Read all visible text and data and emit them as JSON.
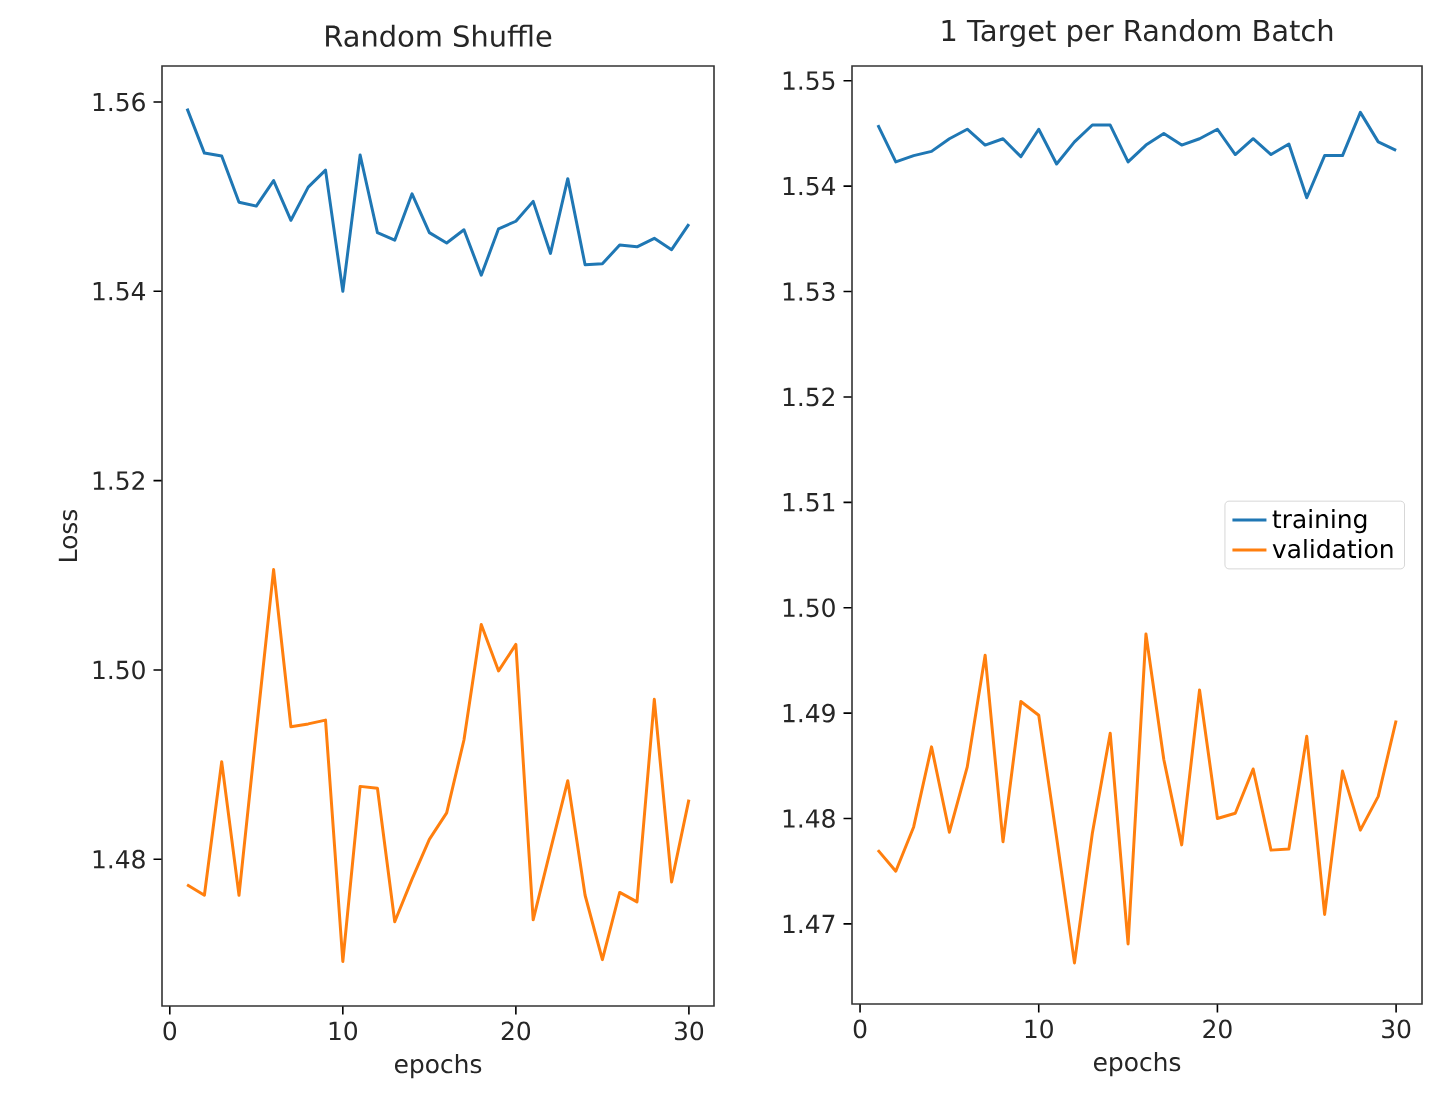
{
  "chart_data": [
    {
      "type": "line",
      "title": "Random Shuffle",
      "xlabel": "epochs",
      "ylabel": "Loss",
      "x": [
        1,
        2,
        3,
        4,
        5,
        6,
        7,
        8,
        9,
        10,
        11,
        12,
        13,
        14,
        15,
        16,
        17,
        18,
        19,
        20,
        21,
        22,
        23,
        24,
        25,
        26,
        27,
        28,
        29,
        30
      ],
      "series": [
        {
          "color": "#1f77b4",
          "values": [
            1.5593,
            1.5546,
            1.5543,
            1.5494,
            1.549,
            1.5517,
            1.5475,
            1.551,
            1.5528,
            1.54,
            1.5544,
            1.5462,
            1.5454,
            1.5503,
            1.5462,
            1.5451,
            1.5465,
            1.5417,
            1.5466,
            1.5474,
            1.5495,
            1.544,
            1.5519,
            1.5428,
            1.5429,
            1.5449,
            1.5447,
            1.5456,
            1.5444,
            1.5471
          ]
        },
        {
          "color": "#ff7f0e",
          "values": [
            1.4773,
            1.4762,
            1.4903,
            1.4762,
            1.4935,
            1.5106,
            1.494,
            1.4943,
            1.4947,
            1.4692,
            1.4877,
            1.4875,
            1.4734,
            1.4779,
            1.4821,
            1.4849,
            1.4926,
            1.5048,
            1.4999,
            1.5027,
            1.4736,
            1.481,
            1.4883,
            1.4762,
            1.4694,
            1.4765,
            1.4755,
            1.4969,
            1.4776,
            1.4863
          ]
        }
      ],
      "xlim": [
        -0.45,
        31.45
      ],
      "ylim": [
        1.4645,
        1.5638
      ],
      "xticks": [
        0,
        10,
        20,
        30
      ],
      "yticks": [
        1.48,
        {
          "value": 1.5,
          "label": "1.50"
        },
        1.52,
        1.54,
        1.56
      ]
    },
    {
      "type": "line",
      "title": "1 Target per Random Batch",
      "xlabel": "epochs",
      "x": [
        1,
        2,
        3,
        4,
        5,
        6,
        7,
        8,
        9,
        10,
        11,
        12,
        13,
        14,
        15,
        16,
        17,
        18,
        19,
        20,
        21,
        22,
        23,
        24,
        25,
        26,
        27,
        28,
        29,
        30
      ],
      "series": [
        {
          "name": "training",
          "color": "#1f77b4",
          "values": [
            1.5458,
            1.5423,
            1.5429,
            1.5433,
            1.5445,
            1.5454,
            1.5439,
            1.5445,
            1.5428,
            1.5454,
            1.5421,
            1.5442,
            1.5458,
            1.5458,
            1.5423,
            1.5439,
            1.545,
            1.5439,
            1.5445,
            1.5454,
            1.543,
            1.5445,
            1.543,
            1.544,
            1.5389,
            1.5429,
            1.5429,
            1.547,
            1.5442,
            1.5434
          ]
        },
        {
          "name": "validation",
          "color": "#ff7f0e",
          "values": [
            1.477,
            1.475,
            1.4792,
            1.4868,
            1.4787,
            1.4849,
            1.4955,
            1.4778,
            1.4911,
            1.4898,
            1.4782,
            1.4663,
            1.4786,
            1.4881,
            1.4681,
            1.4975,
            1.4856,
            1.4775,
            1.4922,
            1.48,
            1.4805,
            1.4847,
            1.477,
            1.4771,
            1.4878,
            1.4709,
            1.4845,
            1.4789,
            1.4821,
            1.4893
          ]
        }
      ],
      "xlim": [
        -0.45,
        31.45
      ],
      "ylim": [
        1.4624,
        1.5514
      ],
      "xticks": [
        0,
        10,
        20,
        30
      ],
      "yticks": [
        1.47,
        1.48,
        1.49,
        {
          "value": 1.5,
          "label": "1.50"
        },
        1.51,
        1.52,
        1.53,
        1.54,
        1.55
      ],
      "legend": "right"
    }
  ]
}
